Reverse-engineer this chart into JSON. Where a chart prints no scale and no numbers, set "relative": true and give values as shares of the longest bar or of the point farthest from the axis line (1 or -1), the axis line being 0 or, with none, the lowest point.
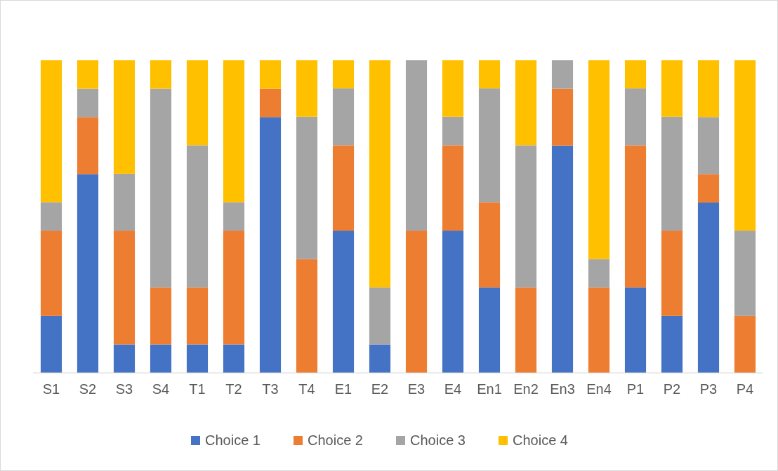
{
  "chart_data": {
    "type": "bar",
    "stacked": true,
    "relative": true,
    "legend": "bottom",
    "categories": [
      "S1",
      "S2",
      "S3",
      "S4",
      "T1",
      "T2",
      "T3",
      "T4",
      "E1",
      "E2",
      "E3",
      "E4",
      "En1",
      "En2",
      "En3",
      "En4",
      "P1",
      "P2",
      "P3",
      "P4"
    ],
    "series": [
      {
        "name": "Choice 1",
        "color": "#4472c4",
        "values": [
          0.182,
          0.636,
          0.091,
          0.091,
          0.091,
          0.091,
          0.818,
          0,
          0.455,
          0.091,
          0,
          0.455,
          0.273,
          0,
          0.727,
          0,
          0.273,
          0.182,
          0.545,
          0
        ]
      },
      {
        "name": "Choice 2",
        "color": "#ed7d31",
        "values": [
          0.273,
          0.182,
          0.364,
          0.182,
          0.182,
          0.364,
          0.091,
          0.364,
          0.273,
          0,
          0.455,
          0.273,
          0.273,
          0.273,
          0.182,
          0.273,
          0.455,
          0.273,
          0.091,
          0.182
        ]
      },
      {
        "name": "Choice 3",
        "color": "#a5a5a5",
        "values": [
          0.091,
          0.091,
          0.182,
          0.636,
          0.455,
          0.091,
          0,
          0.455,
          0.182,
          0.182,
          0.545,
          0.091,
          0.364,
          0.455,
          0.091,
          0.091,
          0.182,
          0.364,
          0.182,
          0.273
        ]
      },
      {
        "name": "Choice 4",
        "color": "#ffc000",
        "values": [
          0.454,
          0.091,
          0.363,
          0.091,
          0.272,
          0.454,
          0.091,
          0.181,
          0.09,
          0.727,
          0,
          0.181,
          0.09,
          0.272,
          0,
          0.636,
          0.09,
          0.181,
          0.182,
          0.545
        ]
      }
    ]
  }
}
